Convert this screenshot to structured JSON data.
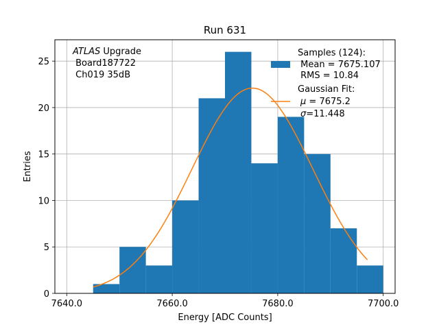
{
  "chart_data": {
    "type": "bar",
    "title": "Run 631",
    "xlabel": "Energy [ADC Counts]",
    "ylabel": "Entries",
    "xlim": [
      7637.75,
      7702.25
    ],
    "ylim": [
      0,
      27.3
    ],
    "grid": true,
    "legend_position": "top-right",
    "x_ticks": [
      7640,
      7660,
      7680,
      7700
    ],
    "x_tick_labels": [
      "7640.0",
      "7660.0",
      "7680.0",
      "7700.0"
    ],
    "y_ticks": [
      0,
      5,
      10,
      15,
      20,
      25
    ],
    "y_tick_labels": [
      "0",
      "5",
      "10",
      "15",
      "20",
      "25"
    ],
    "bin_edges": [
      7645,
      7650,
      7655,
      7660,
      7665,
      7670,
      7675,
      7680,
      7685,
      7690,
      7695,
      7700
    ],
    "values": [
      1,
      5,
      3,
      10,
      21,
      26,
      14,
      19,
      15,
      7,
      3
    ],
    "fit": {
      "mu": 7675.2,
      "sigma": 11.448,
      "amplitude": 22.1,
      "x_range": [
        7645,
        7697
      ]
    },
    "annotation_lines": [
      "ATLAS Upgrade",
      " Board187722",
      " Ch019 35dB"
    ],
    "annotation_italic_word": "ATLAS",
    "annotation_rest": " Upgrade",
    "legend": {
      "samples_title": "Samples (124):",
      "samples_mean": " Mean = 7675.107",
      "samples_rms": " RMS = 10.84",
      "fit_title": "Gaussian Fit:",
      "fit_mu_symbol": "μ",
      "fit_mu_value": " = 7675.2",
      "fit_sigma_symbol": "σ",
      "fit_sigma_value": "=11.448"
    },
    "colors": {
      "bar": "#1f77b4",
      "fit": "#ff7f0e",
      "grid": "#b0b0b0"
    }
  }
}
